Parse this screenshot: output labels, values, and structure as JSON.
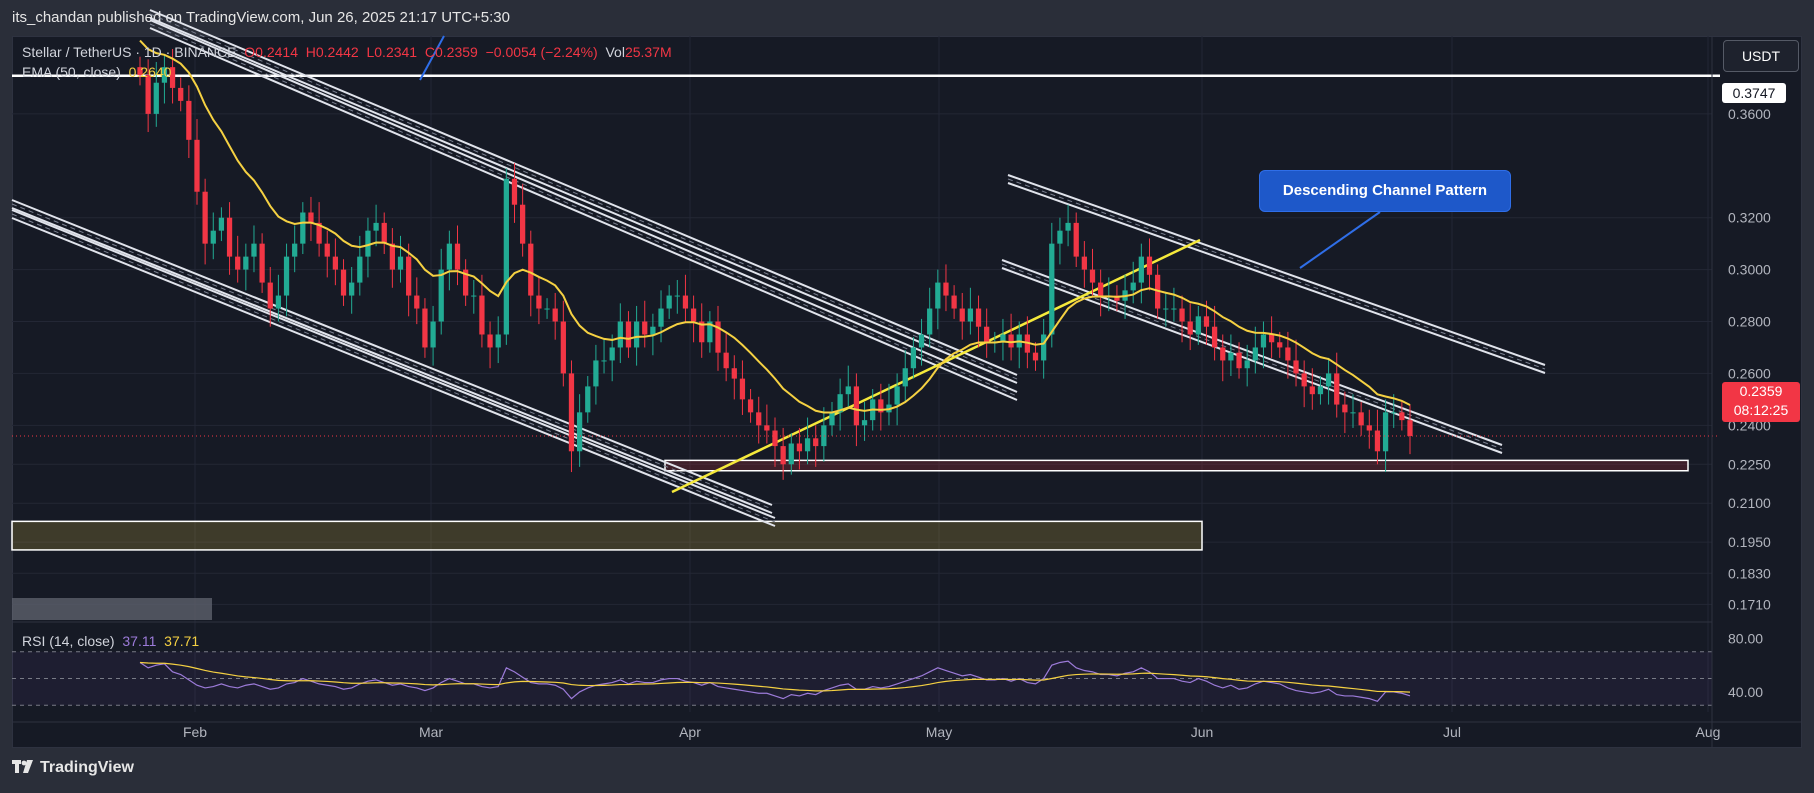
{
  "header": {
    "publisher": "its_chandan published on TradingView.com, Jun 26, 2025 21:17 UTC+5:30"
  },
  "legend": {
    "symbol": "Stellar / TetherUS · 1D · BINANCE",
    "open": "O0.2414",
    "high": "H0.2442",
    "low": "L0.2341",
    "close": "C0.2359",
    "change": "−0.0054 (−2.24%)",
    "vol_label": "Vol",
    "vol_value": "25.37M",
    "ema_label": "EMA (50, close)",
    "ema_value": "0.2640"
  },
  "rsi_legend": {
    "label": "RSI (14, close)",
    "value1": "37.11",
    "value2": "37.71"
  },
  "currency_button": "USDT",
  "price_tags": {
    "top_level": "0.3747",
    "last_price": "0.2359",
    "countdown": "08:12:25"
  },
  "annotation": "Descending Channel Pattern",
  "footer": {
    "brand": "TradingView"
  },
  "colors": {
    "up": "#22ab94",
    "down": "#f23645",
    "ema": "#f5d142",
    "rsi": "#9c7bd9",
    "annotation": "#1e58c9"
  },
  "chart_data": {
    "type": "candlestick",
    "symbol": "Stellar / TetherUS",
    "timeframe": "1D",
    "exchange": "BINANCE",
    "price_scale": {
      "ticks": [
        "0.3600",
        "0.3200",
        "0.3000",
        "0.2800",
        "0.2600",
        "0.2400",
        "0.2250",
        "0.2100",
        "0.1950",
        "0.1830",
        "0.1710"
      ],
      "range": [
        0.165,
        0.39
      ]
    },
    "x_ticks": [
      "Feb",
      "Mar",
      "Apr",
      "May",
      "Jun",
      "Jul",
      "Aug"
    ],
    "rsi_scale": {
      "ticks": [
        "80.00",
        "40.00"
      ],
      "range": [
        25,
        90
      ]
    },
    "horizontal_levels": [
      0.3747
    ],
    "zones": [
      {
        "from": 0.2225,
        "to": 0.2265,
        "color": "#f23645"
      },
      {
        "from": 0.192,
        "to": 0.203,
        "color": "#f5d142"
      }
    ],
    "closes": [
      0.375,
      0.36,
      0.372,
      0.378,
      0.37,
      0.365,
      0.35,
      0.33,
      0.31,
      0.315,
      0.32,
      0.305,
      0.3,
      0.305,
      0.31,
      0.295,
      0.285,
      0.29,
      0.305,
      0.31,
      0.322,
      0.318,
      0.31,
      0.305,
      0.3,
      0.29,
      0.295,
      0.305,
      0.315,
      0.318,
      0.31,
      0.3,
      0.305,
      0.29,
      0.285,
      0.27,
      0.28,
      0.3,
      0.31,
      0.3,
      0.29,
      0.29,
      0.275,
      0.27,
      0.275,
      0.335,
      0.325,
      0.31,
      0.29,
      0.285,
      0.285,
      0.28,
      0.26,
      0.23,
      0.245,
      0.255,
      0.265,
      0.265,
      0.27,
      0.28,
      0.27,
      0.28,
      0.275,
      0.278,
      0.285,
      0.29,
      0.29,
      0.285,
      0.28,
      0.272,
      0.28,
      0.268,
      0.262,
      0.258,
      0.25,
      0.245,
      0.24,
      0.238,
      0.232,
      0.225,
      0.233,
      0.23,
      0.235,
      0.232,
      0.24,
      0.245,
      0.252,
      0.255,
      0.24,
      0.242,
      0.25,
      0.245,
      0.248,
      0.255,
      0.262,
      0.27,
      0.275,
      0.285,
      0.295,
      0.29,
      0.285,
      0.28,
      0.285,
      0.278,
      0.272,
      0.272,
      0.275,
      0.27,
      0.275,
      0.268,
      0.265,
      0.275,
      0.31,
      0.315,
      0.318,
      0.305,
      0.3,
      0.295,
      0.29,
      0.29,
      0.288,
      0.292,
      0.295,
      0.305,
      0.298,
      0.285,
      0.285,
      0.285,
      0.28,
      0.275,
      0.282,
      0.278,
      0.27,
      0.265,
      0.268,
      0.262,
      0.265,
      0.27,
      0.275,
      0.272,
      0.27,
      0.265,
      0.26,
      0.255,
      0.252,
      0.255,
      0.26,
      0.248,
      0.245,
      0.245,
      0.24,
      0.238,
      0.23,
      0.245,
      0.245,
      0.242,
      0.2359
    ],
    "rsi": [
      62,
      58,
      60,
      61,
      55,
      53,
      49,
      45,
      43,
      44,
      46,
      44,
      43,
      45,
      46,
      44,
      42,
      43,
      46,
      47,
      50,
      48,
      46,
      45,
      44,
      42,
      43,
      46,
      48,
      49,
      47,
      45,
      46,
      44,
      43,
      41,
      43,
      47,
      50,
      48,
      46,
      46,
      44,
      43,
      44,
      58,
      55,
      51,
      47,
      46,
      46,
      45,
      42,
      35,
      40,
      43,
      45,
      46,
      47,
      49,
      46,
      48,
      47,
      47,
      49,
      50,
      50,
      48,
      47,
      45,
      47,
      44,
      43,
      42,
      41,
      40,
      39,
      39,
      37,
      35,
      38,
      37,
      39,
      38,
      41,
      43,
      45,
      46,
      42,
      42,
      44,
      43,
      44,
      46,
      48,
      50,
      52,
      55,
      58,
      56,
      54,
      52,
      53,
      51,
      49,
      49,
      50,
      48,
      50,
      47,
      46,
      50,
      60,
      62,
      63,
      58,
      56,
      55,
      53,
      53,
      52,
      54,
      55,
      58,
      55,
      50,
      50,
      50,
      48,
      47,
      50,
      48,
      45,
      43,
      45,
      42,
      43,
      46,
      48,
      47,
      46,
      43,
      41,
      40,
      39,
      40,
      42,
      38,
      37,
      37,
      36,
      35,
      33,
      40,
      40,
      39,
      37.11
    ]
  }
}
